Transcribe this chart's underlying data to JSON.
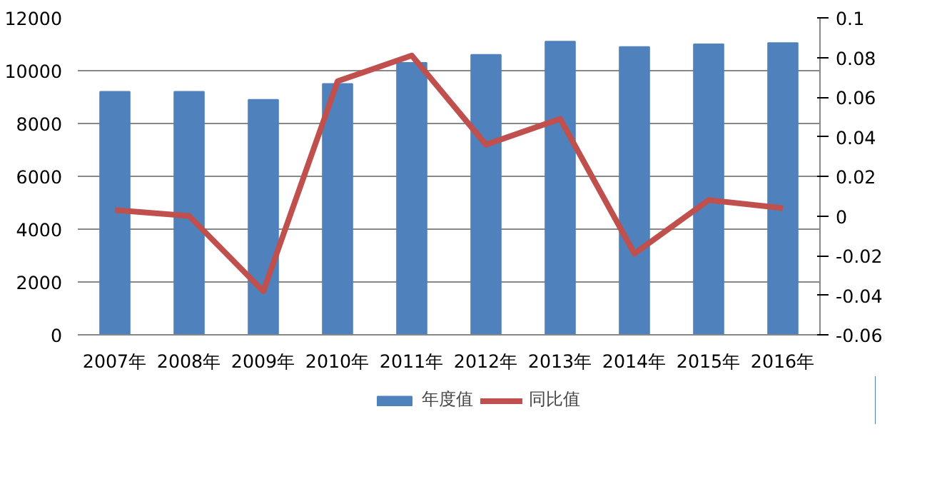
{
  "chart_data": {
    "type": "bar",
    "categories": [
      "2007年",
      "2008年",
      "2009年",
      "2010年",
      "2011年",
      "2012年",
      "2013年",
      "2014年",
      "2015年",
      "2016年"
    ],
    "series": [
      {
        "name": "年度值",
        "color": "#4f81bd",
        "values": [
          9200,
          9200,
          8900,
          9500,
          10300,
          10600,
          11100,
          10900,
          11000,
          11050
        ]
      },
      {
        "name": "同比值",
        "color": "#c0504d",
        "type": "line",
        "axis": "y2",
        "values": [
          0.003,
          0,
          -0.038,
          0.068,
          0.081,
          0.036,
          0.049,
          -0.019,
          0.008,
          0.004
        ]
      }
    ],
    "ylim": [
      0,
      12000
    ],
    "yticks": [
      0,
      2000,
      4000,
      6000,
      8000,
      10000,
      12000
    ],
    "y2lim": [
      -0.06,
      0.1
    ],
    "y2ticks": [
      {
        "value": -0.06,
        "label": "-0.06"
      },
      {
        "value": -0.04,
        "label": "-0.04"
      },
      {
        "value": -0.02,
        "label": "-0.02"
      },
      0,
      {
        "value": 0.02,
        "label": "0.02"
      },
      {
        "value": 0.04,
        "label": "0.04"
      },
      {
        "value": 0.06,
        "label": "0.06"
      },
      {
        "value": 0.08,
        "label": "0.08"
      },
      {
        "value": 0.1,
        "label": "0.1"
      }
    ],
    "grid": "y",
    "legend": "bottom",
    "line_style": "solid"
  }
}
